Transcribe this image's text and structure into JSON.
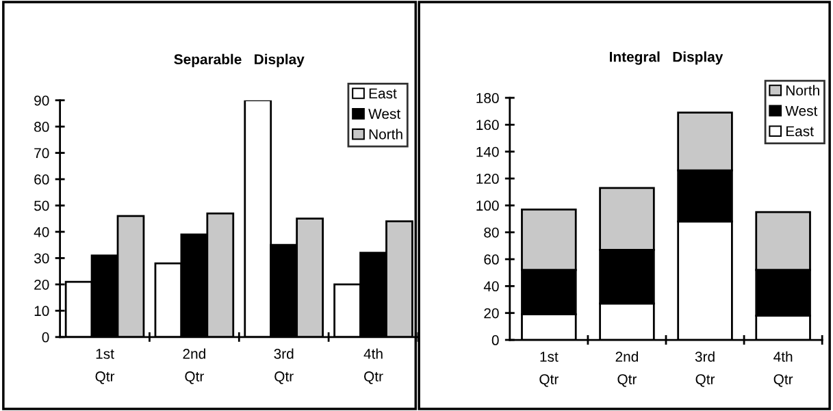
{
  "chart_data": [
    {
      "type": "bar",
      "title": "Separable   Display",
      "categories": [
        "1st\nQtr",
        "2nd\nQtr",
        "3rd\nQtr",
        "4th\nQtr"
      ],
      "series": [
        {
          "name": "East",
          "color": "#ffffff",
          "values": [
            21,
            28,
            90,
            20
          ]
        },
        {
          "name": "West",
          "color": "#000000",
          "values": [
            31,
            39,
            35,
            32
          ]
        },
        {
          "name": "North",
          "color": "#c8c8c8",
          "values": [
            46,
            47,
            45,
            44
          ]
        }
      ],
      "ylim": [
        0,
        90
      ],
      "yticks": [
        0,
        10,
        20,
        30,
        40,
        50,
        60,
        70,
        80,
        90
      ],
      "grid": false,
      "legend": "top right"
    },
    {
      "type": "bar",
      "title": "Integral   Display",
      "categories": [
        "1st\nQtr",
        "2nd\nQtr",
        "3rd\nQtr",
        "4th\nQtr"
      ],
      "stacked": true,
      "series": [
        {
          "name": "East",
          "color": "#ffffff",
          "values": [
            19,
            27,
            88,
            18
          ]
        },
        {
          "name": "West",
          "color": "#000000",
          "values": [
            33,
            40,
            38,
            34
          ]
        },
        {
          "name": "North",
          "color": "#c8c8c8",
          "values": [
            45,
            46,
            43,
            43
          ]
        }
      ],
      "ylim": [
        0,
        180
      ],
      "yticks": [
        0,
        20,
        40,
        60,
        80,
        100,
        120,
        140,
        160,
        180
      ],
      "grid": false,
      "legend": "top right"
    }
  ]
}
